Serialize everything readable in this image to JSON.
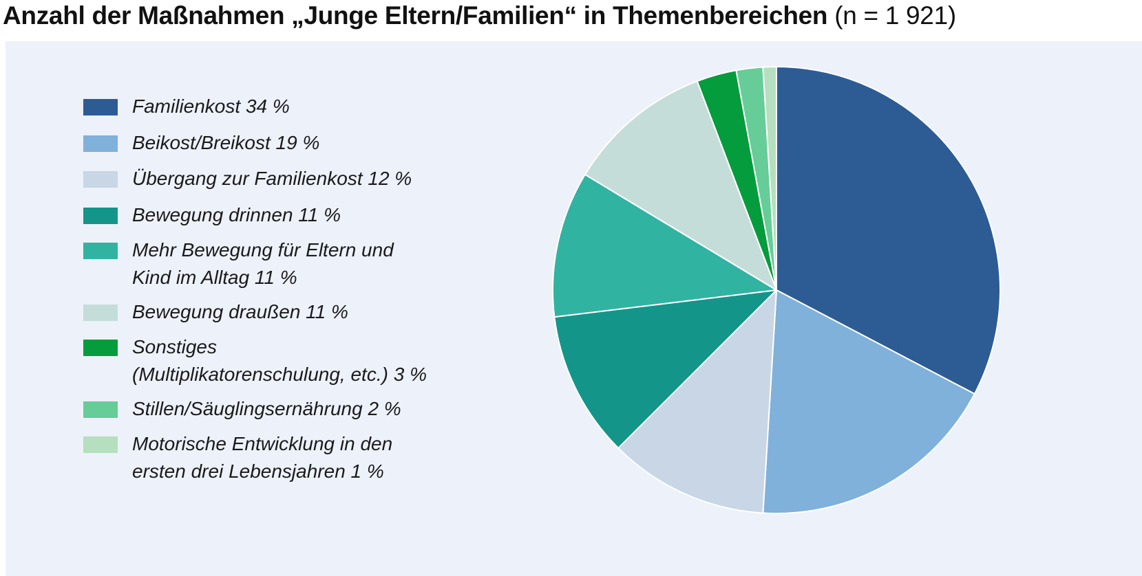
{
  "title": {
    "main": "Anzahl der Maßnahmen „Junge Eltern/Familien“ in Themenbereichen",
    "n": "(n = 1 921)"
  },
  "legend": [
    {
      "label": "Familienkost  34 %",
      "color": "#2d5c94"
    },
    {
      "label": "Beikost/Breikost  19 %",
      "color": "#7fb1da"
    },
    {
      "label": "Übergang zur Familienkost  12 %",
      "color": "#c8d6e5"
    },
    {
      "label": "Bewegung drinnen  11 %",
      "color": "#14958a"
    },
    {
      "label": "Mehr Bewegung für Eltern und\nKind im Alltag  11 %",
      "color": "#31b3a2"
    },
    {
      "label": "Bewegung draußen  11 %",
      "color": "#c5ddd9"
    },
    {
      "label": "Sonstiges\n(Multiplikatorenschulung, etc.)  3 %",
      "color": "#049c3c"
    },
    {
      "label": "Stillen/Säuglingsernährung  2 %",
      "color": "#66cc98"
    },
    {
      "label": "Motorische Entwicklung in den\nersten drei Lebensjahren  1 %",
      "color": "#b5dfbe"
    }
  ],
  "chart_data": {
    "type": "pie",
    "title": "Anzahl der Maßnahmen „Junge Eltern/Familien“ in Themenbereichen",
    "subtitle": "(n = 1 921)",
    "unit": "%",
    "legend_position": "left",
    "categories": [
      "Familienkost",
      "Beikost/Breikost",
      "Übergang zur Familienkost",
      "Bewegung drinnen",
      "Mehr Bewegung für Eltern und Kind im Alltag",
      "Bewegung draußen",
      "Sonstiges (Multiplikatorenschulung, etc.)",
      "Stillen/Säuglingsernährung",
      "Motorische Entwicklung in den ersten drei Lebensjahren"
    ],
    "values": [
      34,
      19,
      12,
      11,
      11,
      11,
      3,
      2,
      1
    ],
    "colors": [
      "#2d5c94",
      "#7fb1da",
      "#c8d6e5",
      "#14958a",
      "#31b3a2",
      "#c5ddd9",
      "#049c3c",
      "#66cc98",
      "#b5dfbe"
    ]
  }
}
